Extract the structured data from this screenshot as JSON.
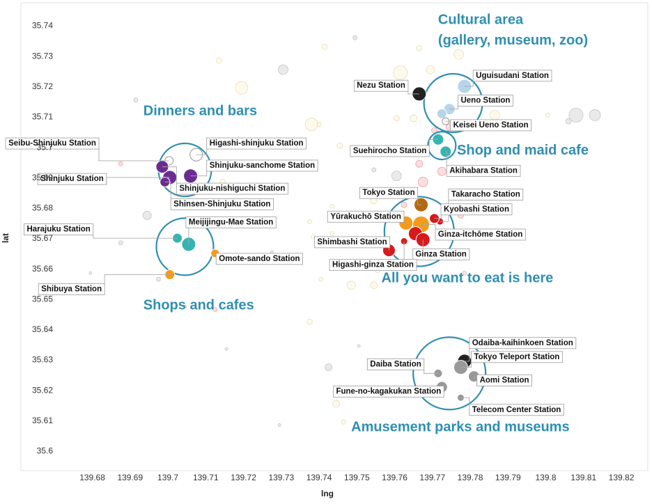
{
  "chart_data": {
    "type": "scatter",
    "xlabel": "lng",
    "ylabel": "lat",
    "xlim": [
      139.674,
      139.827
    ],
    "ylim": [
      35.5935,
      35.7475
    ],
    "x_ticks": [
      "139.68",
      "139.69",
      "139.7",
      "139.71",
      "139.72",
      "139.73",
      "139.74",
      "139.75",
      "139.76",
      "139.77",
      "139.78",
      "139.79",
      "139.8",
      "139.81",
      "139.82"
    ],
    "y_ticks": [
      "35.6",
      "35.61",
      "35.62",
      "35.63",
      "35.64",
      "35.65",
      "35.66",
      "35.67",
      "35.68",
      "35.69",
      "35.7",
      "35.71",
      "35.72",
      "35.73",
      "35.74"
    ],
    "grid": false,
    "colors": {
      "purple": "#6a2c91",
      "teal": "#35b4b2",
      "orange": "#f39b1c",
      "red": "#d7191c",
      "brown": "#b4690e",
      "black": "#222222",
      "gray": "#999999",
      "lightblue": "#b7d5ea",
      "white": "#ffffff",
      "circle": "#2f8fb0",
      "faint_yellow": "#fbf6de",
      "faint_pink": "#f6c3c6",
      "faint_gray": "#d9d9d9"
    },
    "stations": [
      {
        "name": "Seibu-Shinjuku Station",
        "lng": 139.7003,
        "lat": 35.6955,
        "color": "white",
        "r": 6,
        "lx": 139.681,
        "ly": 35.7005,
        "anchor": "end"
      },
      {
        "name": "Higashi-shinjuku Station",
        "lng": 139.7075,
        "lat": 35.6975,
        "color": "white",
        "r": 9,
        "lx": 139.711,
        "ly": 35.7005,
        "anchor": "start"
      },
      {
        "name": "Shinjuku-sanchome Station",
        "lng": 139.706,
        "lat": 35.6905,
        "color": "purple",
        "r": 10,
        "lx": 139.711,
        "ly": 35.6932,
        "anchor": "start"
      },
      {
        "name": "Shinjuku Station",
        "lng": 139.7005,
        "lat": 35.69,
        "color": "purple",
        "r": 10,
        "lx": 139.683,
        "ly": 35.6888,
        "anchor": "end"
      },
      {
        "name": "Shinjuku-nishiguchi Station",
        "lng": 139.6985,
        "lat": 35.6935,
        "color": "purple",
        "r": 9,
        "lx": 139.703,
        "ly": 35.6856,
        "anchor": "start"
      },
      {
        "name": "Shinsen-Shinjuku Station",
        "lng": 139.6992,
        "lat": 35.6885,
        "color": "purple",
        "r": 7,
        "lx": 139.7015,
        "ly": 35.6805,
        "anchor": "start"
      },
      {
        "name": "Harajuku Station",
        "lng": 139.7025,
        "lat": 35.67,
        "color": "teal",
        "r": 7,
        "lx": 139.6795,
        "ly": 35.6722,
        "anchor": "end"
      },
      {
        "name": "Meijijingu-Mae Station",
        "lng": 139.7055,
        "lat": 35.668,
        "color": "teal",
        "r": 10,
        "lx": 139.7055,
        "ly": 35.6745,
        "anchor": "start"
      },
      {
        "name": "Omote-sando Station",
        "lng": 139.7125,
        "lat": 35.665,
        "color": "orange",
        "r": 6,
        "lx": 139.7135,
        "ly": 35.6625,
        "anchor": "start"
      },
      {
        "name": "Shibuya Station",
        "lng": 139.7005,
        "lat": 35.658,
        "color": "orange",
        "r": 7,
        "lx": 139.6825,
        "ly": 35.6525,
        "anchor": "end"
      },
      {
        "name": "Nezu Station",
        "lng": 139.7665,
        "lat": 35.7175,
        "color": "black",
        "r": 10,
        "lx": 139.75,
        "ly": 35.7195,
        "anchor": "start"
      },
      {
        "name": "Uguisudani Station",
        "lng": 139.7785,
        "lat": 35.72,
        "color": "lightblue",
        "r": 10,
        "lx": 139.7815,
        "ly": 35.7228,
        "anchor": "start"
      },
      {
        "name": "Ueno Station",
        "lng": 139.7745,
        "lat": 35.7125,
        "color": "lightblue",
        "r": 8,
        "lx": 139.7775,
        "ly": 35.7146,
        "anchor": "start"
      },
      {
        "name": "",
        "lng": 139.7725,
        "lat": 35.711,
        "color": "lightblue",
        "r": 7,
        "lx": 0,
        "ly": 0,
        "anchor": "start"
      },
      {
        "name": "Keisei Ueno Station",
        "lng": 139.7735,
        "lat": 35.7085,
        "color": "white",
        "r": 5,
        "lx": 139.7755,
        "ly": 35.7065,
        "anchor": "start"
      },
      {
        "name": "Suehirocho Station",
        "lng": 139.7715,
        "lat": 35.7025,
        "color": "teal",
        "r": 8,
        "lx": 139.749,
        "ly": 35.698,
        "anchor": "start"
      },
      {
        "name": "Akihabara Station",
        "lng": 139.7735,
        "lat": 35.6985,
        "color": "teal",
        "r": 8,
        "lx": 139.7745,
        "ly": 35.6915,
        "anchor": "start"
      },
      {
        "name": "Tokyo Station",
        "lng": 139.767,
        "lat": 35.681,
        "color": "brown",
        "r": 10,
        "lx": 139.7515,
        "ly": 35.6842,
        "anchor": "start"
      },
      {
        "name": "Takaracho Station",
        "lng": 139.772,
        "lat": 35.6755,
        "color": "red",
        "r": 5,
        "lx": 139.775,
        "ly": 35.6837,
        "anchor": "start"
      },
      {
        "name": "Kyobashi Station",
        "lng": 139.7705,
        "lat": 35.6765,
        "color": "red",
        "r": 7,
        "lx": 139.773,
        "ly": 35.6788,
        "anchor": "start"
      },
      {
        "name": "Yūrakuchō Station",
        "lng": 139.763,
        "lat": 35.675,
        "color": "orange",
        "r": 10,
        "lx": 139.743,
        "ly": 35.6764,
        "anchor": "start"
      },
      {
        "name": "Ginza-itchōme Station",
        "lng": 139.767,
        "lat": 35.6745,
        "color": "orange",
        "r": 12,
        "lx": 139.7715,
        "ly": 35.6705,
        "anchor": "start"
      },
      {
        "name": "Shimbashi Station",
        "lng": 139.7585,
        "lat": 35.666,
        "color": "red",
        "r": 9,
        "lx": 139.7395,
        "ly": 35.668,
        "anchor": "start"
      },
      {
        "name": "",
        "lng": 139.7655,
        "lat": 35.6715,
        "color": "red",
        "r": 10,
        "lx": 0,
        "ly": 0,
        "anchor": "start"
      },
      {
        "name": "Ginza Station",
        "lng": 139.7675,
        "lat": 35.6695,
        "color": "red",
        "r": 10,
        "lx": 139.7655,
        "ly": 35.664,
        "anchor": "start"
      },
      {
        "name": "Higashi-ginza Station",
        "lng": 139.7625,
        "lat": 35.669,
        "color": "red",
        "r": 5,
        "lx": 139.7435,
        "ly": 35.6605,
        "anchor": "start"
      },
      {
        "name": "Odaiba-kaihinkoen Station",
        "lng": 139.7785,
        "lat": 35.6295,
        "color": "black",
        "r": 10,
        "lx": 139.7805,
        "ly": 35.6348,
        "anchor": "start"
      },
      {
        "name": "Tokyo Teleport Station",
        "lng": 139.7775,
        "lat": 35.6275,
        "color": "gray",
        "r": 10,
        "lx": 139.781,
        "ly": 35.6302,
        "anchor": "start"
      },
      {
        "name": "Aomi Station",
        "lng": 139.781,
        "lat": 35.6245,
        "color": "gray",
        "r": 8,
        "lx": 139.7825,
        "ly": 35.6225,
        "anchor": "start"
      },
      {
        "name": "Daiba Station",
        "lng": 139.7715,
        "lat": 35.6255,
        "color": "gray",
        "r": 6,
        "lx": 139.7535,
        "ly": 35.6278,
        "anchor": "start"
      },
      {
        "name": "Fune-no-kagakukan Station",
        "lng": 139.7725,
        "lat": 35.621,
        "color": "gray",
        "r": 8,
        "lx": 139.7445,
        "ly": 35.6188,
        "anchor": "start"
      },
      {
        "name": "Telecom Center Station",
        "lng": 139.7775,
        "lat": 35.6175,
        "color": "gray",
        "r": 5,
        "lx": 139.7805,
        "ly": 35.6128,
        "anchor": "start"
      }
    ],
    "background_points": [
      {
        "lng": 139.6915,
        "lat": 35.7155,
        "r": 3,
        "c": "faint_gray"
      },
      {
        "lng": 139.7135,
        "lat": 35.7285,
        "r": 4,
        "c": "faint_yellow"
      },
      {
        "lng": 139.7195,
        "lat": 35.7195,
        "r": 9,
        "c": "faint_yellow"
      },
      {
        "lng": 139.7305,
        "lat": 35.7255,
        "r": 7,
        "c": "faint_gray"
      },
      {
        "lng": 139.738,
        "lat": 35.7075,
        "r": 9,
        "c": "faint_yellow"
      },
      {
        "lng": 139.7415,
        "lat": 35.733,
        "r": 4,
        "c": "faint_yellow"
      },
      {
        "lng": 139.7495,
        "lat": 35.736,
        "r": 3,
        "c": "faint_gray"
      },
      {
        "lng": 139.74,
        "lat": 35.7075,
        "r": 3,
        "c": "faint_yellow"
      },
      {
        "lng": 139.7455,
        "lat": 35.7005,
        "r": 4,
        "c": "faint_yellow"
      },
      {
        "lng": 139.7535,
        "lat": 35.6985,
        "r": 3,
        "c": "faint_yellow"
      },
      {
        "lng": 139.7615,
        "lat": 35.7245,
        "r": 10,
        "c": "faint_yellow"
      },
      {
        "lng": 139.7695,
        "lat": 35.7255,
        "r": 6,
        "c": "faint_yellow"
      },
      {
        "lng": 139.777,
        "lat": 35.7305,
        "r": 7,
        "c": "faint_yellow"
      },
      {
        "lng": 139.7665,
        "lat": 35.7325,
        "r": 4,
        "c": "faint_yellow"
      },
      {
        "lng": 139.7865,
        "lat": 35.7105,
        "r": 7,
        "c": "faint_yellow"
      },
      {
        "lng": 139.7955,
        "lat": 35.7075,
        "r": 4,
        "c": "faint_yellow"
      },
      {
        "lng": 139.8005,
        "lat": 35.7105,
        "r": 3,
        "c": "faint_yellow"
      },
      {
        "lng": 139.806,
        "lat": 35.7085,
        "r": 4,
        "c": "faint_gray"
      },
      {
        "lng": 139.808,
        "lat": 35.7105,
        "r": 10,
        "c": "faint_gray"
      },
      {
        "lng": 139.813,
        "lat": 35.7105,
        "r": 8,
        "c": "faint_gray"
      },
      {
        "lng": 139.7605,
        "lat": 35.7095,
        "r": 4,
        "c": "faint_yellow"
      },
      {
        "lng": 139.765,
        "lat": 35.7095,
        "r": 5,
        "c": "faint_yellow"
      },
      {
        "lng": 139.7745,
        "lat": 35.7065,
        "r": 5,
        "c": "faint_pink"
      },
      {
        "lng": 139.7705,
        "lat": 35.7055,
        "r": 4,
        "c": "faint_pink"
      },
      {
        "lng": 139.7685,
        "lat": 35.6985,
        "r": 4,
        "c": "faint_pink"
      },
      {
        "lng": 139.7725,
        "lat": 35.692,
        "r": 6,
        "c": "faint_pink"
      },
      {
        "lng": 139.7665,
        "lat": 35.6945,
        "r": 5,
        "c": "faint_pink"
      },
      {
        "lng": 139.7545,
        "lat": 35.6925,
        "r": 3,
        "c": "faint_gray"
      },
      {
        "lng": 139.7605,
        "lat": 35.6905,
        "r": 7,
        "c": "faint_gray"
      },
      {
        "lng": 139.7675,
        "lat": 35.6885,
        "r": 7,
        "c": "faint_pink"
      },
      {
        "lng": 139.7545,
        "lat": 35.6825,
        "r": 5,
        "c": "faint_yellow"
      },
      {
        "lng": 139.7625,
        "lat": 35.681,
        "r": 4,
        "c": "faint_pink"
      },
      {
        "lng": 139.7775,
        "lat": 35.6775,
        "r": 4,
        "c": "faint_pink"
      },
      {
        "lng": 139.776,
        "lat": 35.6835,
        "r": 3,
        "c": "faint_pink"
      },
      {
        "lng": 139.7435,
        "lat": 35.6805,
        "r": 3,
        "c": "faint_yellow"
      },
      {
        "lng": 139.7375,
        "lat": 35.6755,
        "r": 3,
        "c": "faint_yellow"
      },
      {
        "lng": 139.7385,
        "lat": 35.6705,
        "r": 3,
        "c": "faint_yellow"
      },
      {
        "lng": 139.7405,
        "lat": 35.6565,
        "r": 3,
        "c": "faint_yellow"
      },
      {
        "lng": 139.7485,
        "lat": 35.6545,
        "r": 6,
        "c": "faint_yellow"
      },
      {
        "lng": 139.7545,
        "lat": 35.6545,
        "r": 5,
        "c": "faint_yellow"
      },
      {
        "lng": 139.7555,
        "lat": 35.6595,
        "r": 4,
        "c": "faint_yellow"
      },
      {
        "lng": 139.7375,
        "lat": 35.6425,
        "r": 4,
        "c": "faint_yellow"
      },
      {
        "lng": 139.7425,
        "lat": 35.6275,
        "r": 5,
        "c": "faint_gray"
      },
      {
        "lng": 139.7445,
        "lat": 35.6155,
        "r": 5,
        "c": "faint_yellow"
      },
      {
        "lng": 139.7465,
        "lat": 35.6095,
        "r": 3,
        "c": "faint_yellow"
      },
      {
        "lng": 139.7295,
        "lat": 35.6085,
        "r": 2,
        "c": "faint_gray"
      },
      {
        "lng": 139.7155,
        "lat": 35.6335,
        "r": 2,
        "c": "faint_gray"
      },
      {
        "lng": 139.7125,
        "lat": 35.6465,
        "r": 3,
        "c": "faint_pink"
      },
      {
        "lng": 139.7045,
        "lat": 35.6475,
        "r": 2,
        "c": "faint_pink"
      },
      {
        "lng": 139.7275,
        "lat": 35.6655,
        "r": 2,
        "c": "faint_gray"
      },
      {
        "lng": 139.7215,
        "lat": 35.6865,
        "r": 5,
        "c": "faint_yellow"
      },
      {
        "lng": 139.7145,
        "lat": 35.6885,
        "r": 4,
        "c": "faint_yellow"
      },
      {
        "lng": 139.6945,
        "lat": 35.6775,
        "r": 6,
        "c": "faint_gray"
      },
      {
        "lng": 139.6875,
        "lat": 35.6685,
        "r": 3,
        "c": "faint_gray"
      },
      {
        "lng": 139.6875,
        "lat": 35.6945,
        "r": 3,
        "c": "faint_pink"
      },
      {
        "lng": 139.6795,
        "lat": 35.6585,
        "r": 2,
        "c": "faint_gray"
      },
      {
        "lng": 139.6975,
        "lat": 35.6565,
        "r": 3,
        "c": "faint_gray"
      },
      {
        "lng": 139.7505,
        "lat": 35.6345,
        "r": 2,
        "c": "faint_gray"
      },
      {
        "lng": 139.7435,
        "lat": 35.6715,
        "r": 3,
        "c": "faint_yellow"
      },
      {
        "lng": 139.7785,
        "lat": 35.6585,
        "r": 3,
        "c": "faint_gray"
      }
    ],
    "cluster_circles": [
      {
        "lng": 139.7045,
        "lat": 35.6925,
        "r": 38
      },
      {
        "lng": 139.7045,
        "lat": 35.6672,
        "r": 41
      },
      {
        "lng": 139.7755,
        "lat": 35.7145,
        "r": 42
      },
      {
        "lng": 139.7725,
        "lat": 35.7005,
        "r": 20
      },
      {
        "lng": 139.7665,
        "lat": 35.6722,
        "r": 50
      },
      {
        "lng": 139.7745,
        "lat": 35.6255,
        "r": 52
      }
    ],
    "annotations": [
      {
        "text": "Dinners and bars",
        "lng": 139.6935,
        "lat": 35.7105
      },
      {
        "text": "Shops and cafes",
        "lng": 139.6935,
        "lat": 35.6465
      },
      {
        "text": "Cultural area",
        "lng": 139.7715,
        "lat": 35.7405
      },
      {
        "text": "(gallery, museum, zoo)",
        "lng": 139.7715,
        "lat": 35.7338
      },
      {
        "text": "Shop and maid cafe",
        "lng": 139.7765,
        "lat": 35.6975
      },
      {
        "text": "All you want to eat is here",
        "lng": 139.7565,
        "lat": 35.6555
      },
      {
        "text": "Amusement parks and museums",
        "lng": 139.7485,
        "lat": 35.6065
      }
    ]
  }
}
